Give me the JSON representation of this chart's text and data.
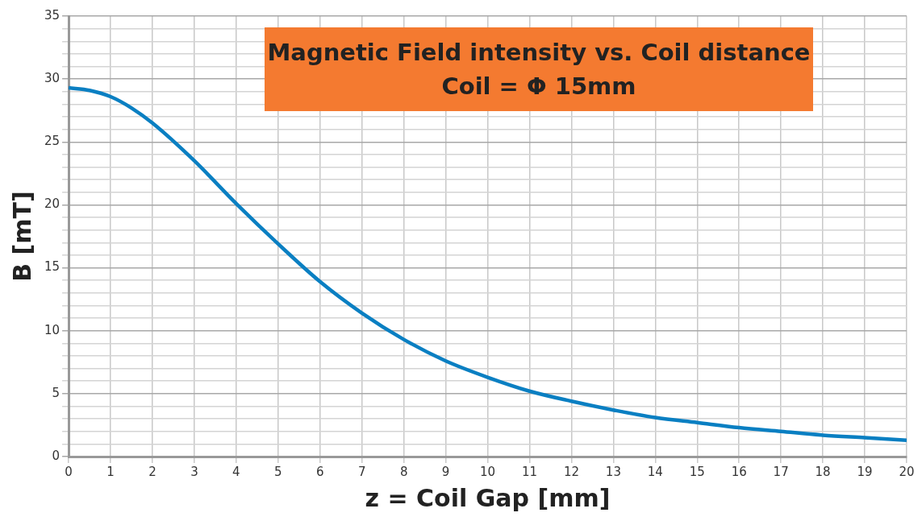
{
  "chart_data": {
    "type": "line",
    "title": "Magnetic Field intensity vs. Coil distance",
    "subtitle": "Coil = Φ 15mm",
    "xlabel": "z = Coil Gap [mm]",
    "ylabel": "B [mT]",
    "x": [
      0,
      0.5,
      1,
      1.5,
      2,
      3,
      4,
      5,
      6,
      7,
      8,
      9,
      10,
      11,
      12,
      13,
      14,
      15,
      16,
      17,
      18,
      19,
      20
    ],
    "series": [
      {
        "color": "#0a7fc2",
        "values": [
          29.3,
          29.1,
          28.6,
          27.7,
          26.5,
          23.5,
          20.1,
          16.9,
          13.9,
          11.4,
          9.3,
          7.6,
          6.3,
          5.2,
          4.4,
          3.7,
          3.1,
          2.7,
          2.3,
          2.0,
          1.7,
          1.5,
          1.3
        ]
      }
    ],
    "xlim": [
      0,
      20
    ],
    "xticks": [
      0,
      1,
      2,
      3,
      4,
      5,
      6,
      7,
      8,
      9,
      10,
      11,
      12,
      13,
      14,
      15,
      16,
      17,
      18,
      19,
      20
    ],
    "ylim": [
      0,
      35
    ],
    "yticks": [
      0,
      {
        "value": 1,
        "label": null
      },
      {
        "value": 2,
        "label": null
      },
      {
        "value": 3,
        "label": null
      },
      {
        "value": 4,
        "label": null
      },
      5,
      {
        "value": 6,
        "label": null
      },
      {
        "value": 7,
        "label": null
      },
      {
        "value": 8,
        "label": null
      },
      {
        "value": 9,
        "label": null
      },
      10,
      {
        "value": 11,
        "label": null
      },
      {
        "value": 12,
        "label": null
      },
      {
        "value": 13,
        "label": null
      },
      {
        "value": 14,
        "label": null
      },
      15,
      {
        "value": 16,
        "label": null
      },
      {
        "value": 17,
        "label": null
      },
      {
        "value": 18,
        "label": null
      },
      {
        "value": 19,
        "label": null
      },
      20,
      {
        "value": 21,
        "label": null
      },
      {
        "value": 22,
        "label": null
      },
      {
        "value": 23,
        "label": null
      },
      {
        "value": 24,
        "label": null
      },
      25,
      {
        "value": 26,
        "label": null
      },
      {
        "value": 27,
        "label": null
      },
      {
        "value": 28,
        "label": null
      },
      {
        "value": 29,
        "label": null
      },
      30,
      {
        "value": 31,
        "label": null
      },
      {
        "value": 32,
        "label": null
      },
      {
        "value": 33,
        "label": null
      },
      {
        "value": 34,
        "label": null
      },
      35
    ],
    "grid": true,
    "legend": false,
    "marker": "none",
    "line_style": "solid"
  }
}
